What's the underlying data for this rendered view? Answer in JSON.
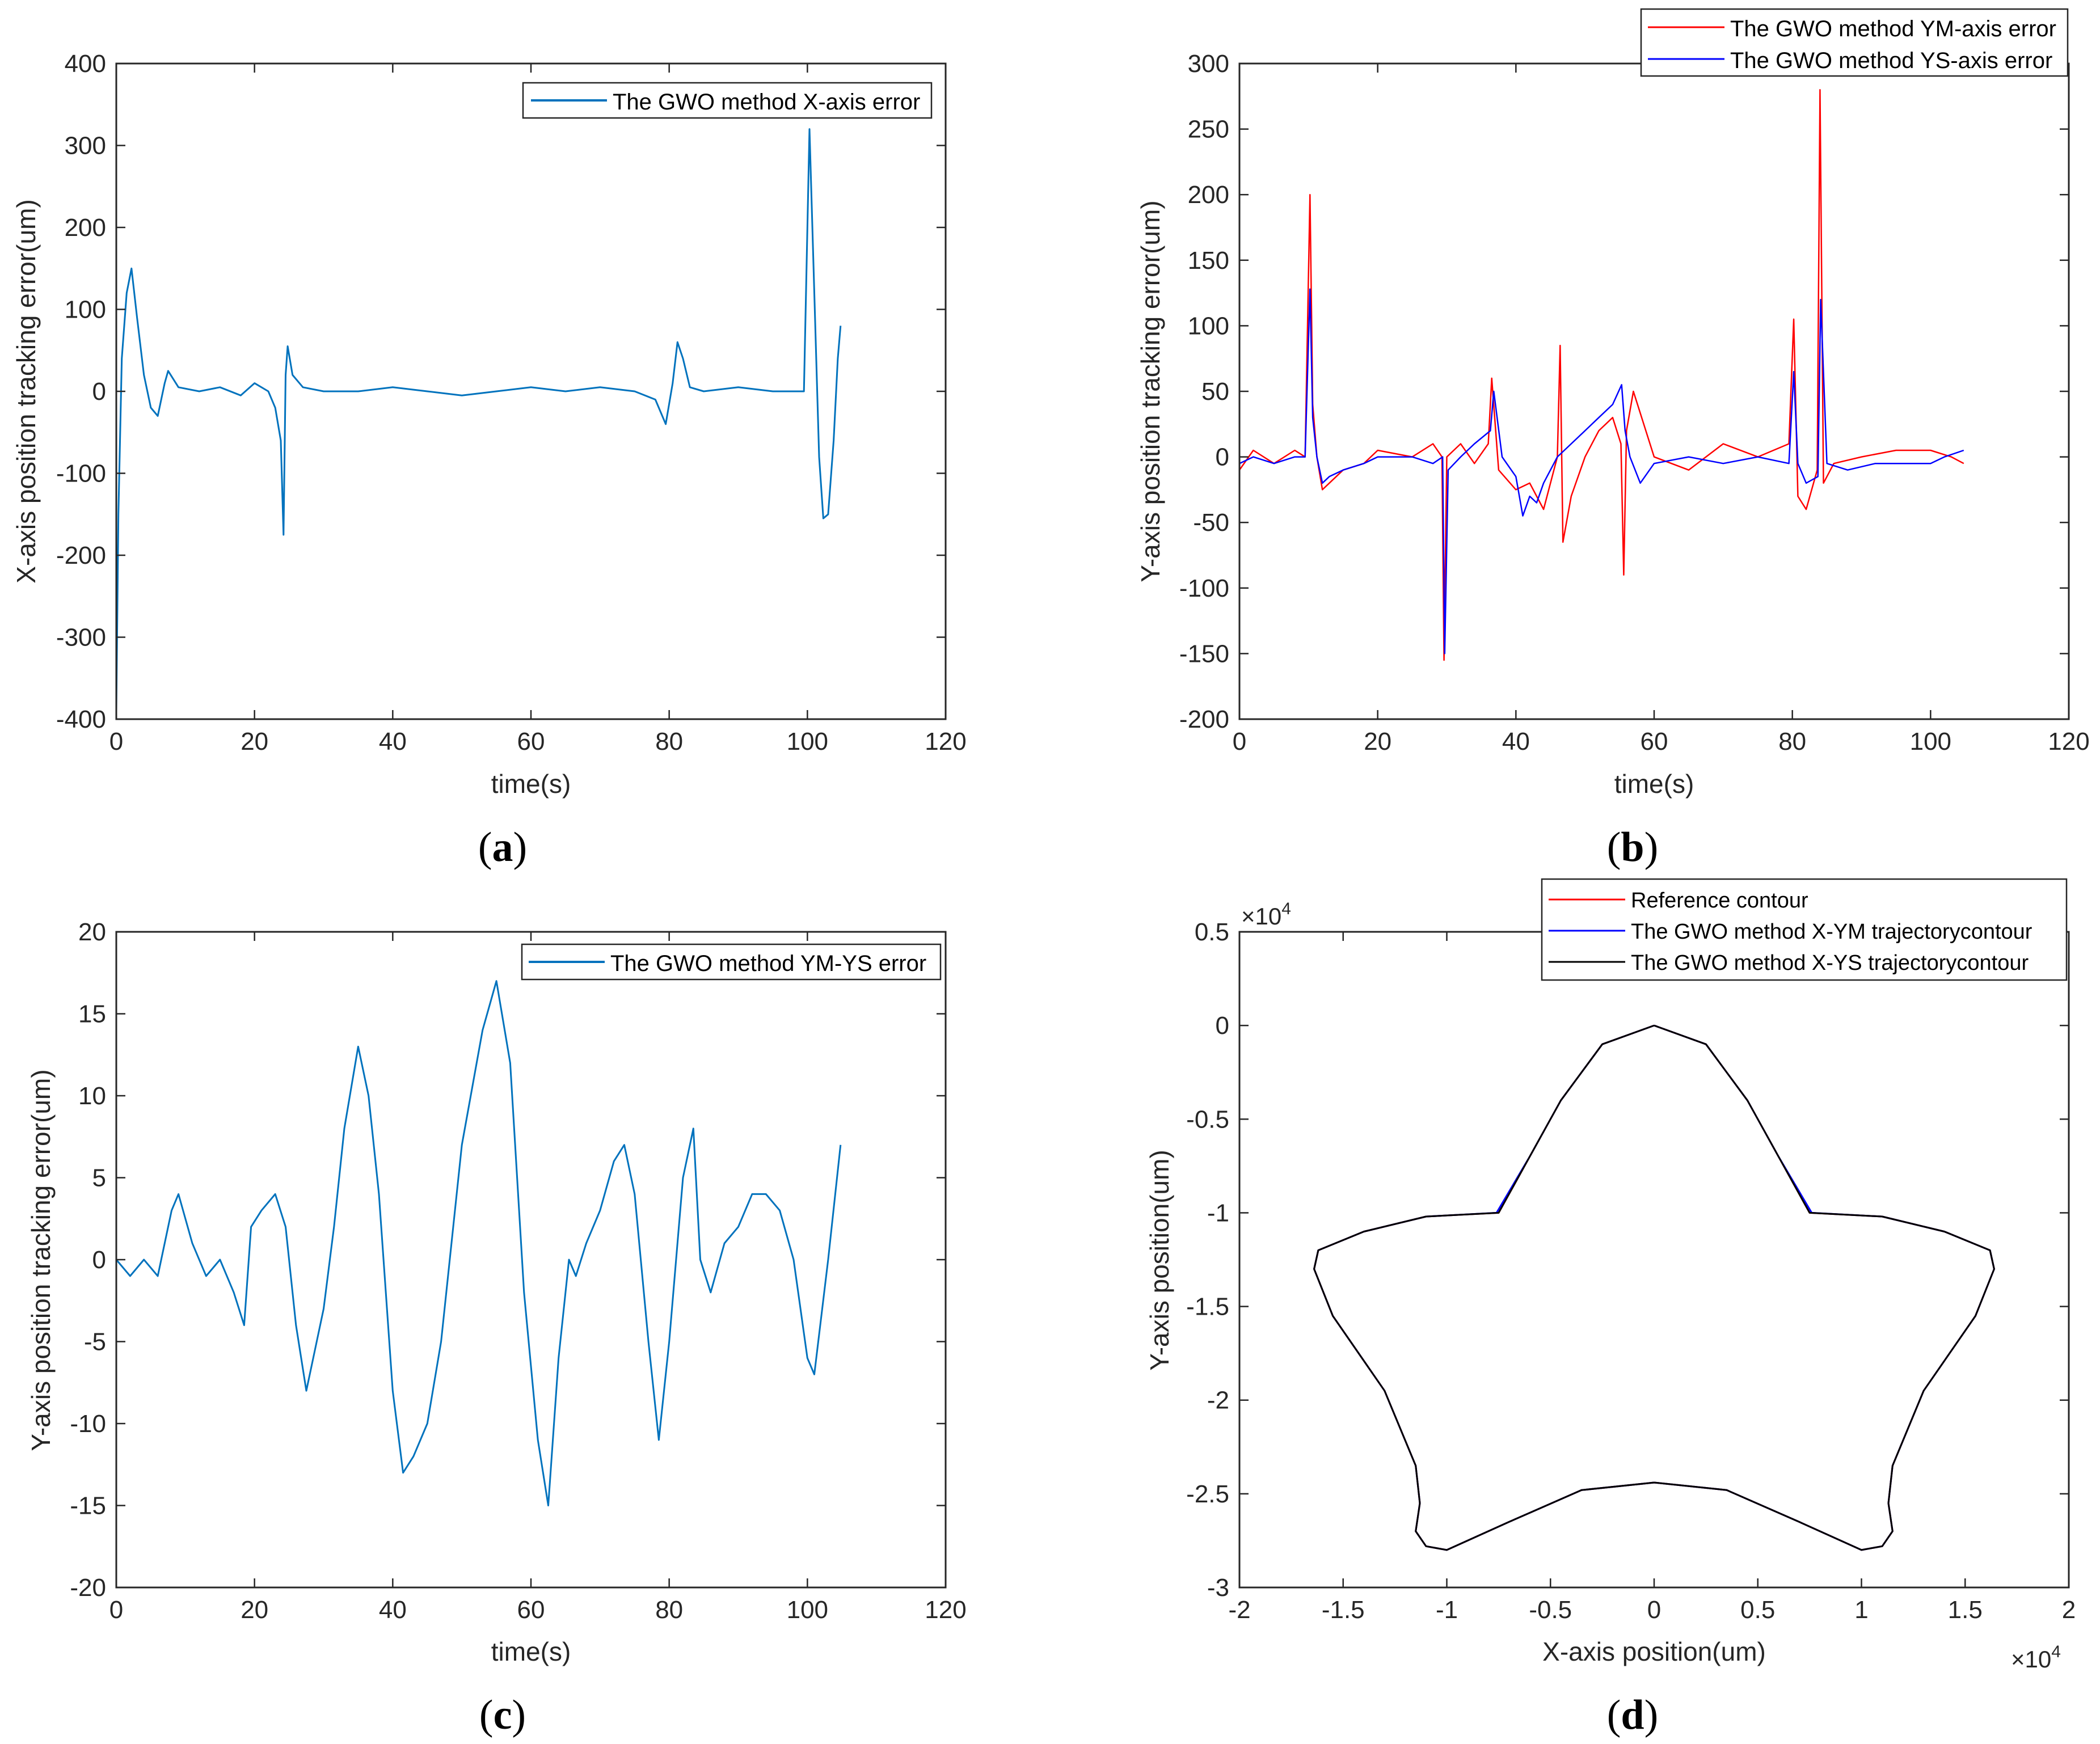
{
  "figure": {
    "panels": [
      "a",
      "b",
      "c",
      "d"
    ],
    "captions": {
      "a": [
        "(",
        "a",
        ")"
      ],
      "b": [
        "(",
        "b",
        ")"
      ],
      "c": [
        "(",
        "c",
        ")"
      ],
      "d": [
        "(",
        "d",
        ")"
      ]
    }
  },
  "chart_data": [
    {
      "id": "a",
      "type": "line",
      "title": "",
      "xlabel": "time(s)",
      "ylabel": "X-axis position tracking error(um)",
      "xlim": [
        0,
        120
      ],
      "ylim": [
        -400,
        400
      ],
      "xticks": [
        0,
        20,
        40,
        60,
        80,
        100,
        120
      ],
      "xtick_labels": [
        "0",
        "20",
        "40",
        "60",
        "80",
        "100",
        "120"
      ],
      "yticks": [
        -400,
        -300,
        -200,
        -100,
        0,
        100,
        200,
        300,
        400
      ],
      "ytick_labels": [
        "-400",
        "-300",
        "-200",
        "-100",
        "0",
        "100",
        "200",
        "300",
        "400"
      ],
      "grid": false,
      "legend_position": "top-right",
      "series": [
        {
          "name": "The GWO method X-axis error",
          "color": "#0072BD",
          "x": [
            0,
            0.3,
            0.8,
            1.5,
            2.2,
            3,
            4,
            5,
            6,
            7,
            7.5,
            9,
            12,
            15,
            18,
            20,
            22,
            23,
            23.8,
            24.2,
            24.5,
            24.8,
            25.5,
            27,
            30,
            35,
            40,
            45,
            50,
            55,
            60,
            65,
            70,
            75,
            78,
            79.5,
            80.5,
            81.2,
            82,
            83,
            85,
            90,
            95,
            99.5,
            100.3,
            101,
            101.7,
            102.3,
            103,
            103.8,
            104.4,
            104.8
          ],
          "y": [
            -390,
            -150,
            40,
            120,
            150,
            90,
            20,
            -20,
            -30,
            10,
            25,
            5,
            0,
            5,
            -5,
            10,
            0,
            -20,
            -60,
            -175,
            20,
            55,
            20,
            5,
            0,
            0,
            5,
            0,
            -5,
            0,
            5,
            0,
            5,
            0,
            -10,
            -40,
            10,
            60,
            40,
            5,
            0,
            5,
            0,
            0,
            320,
            120,
            -80,
            -155,
            -150,
            -60,
            40,
            80
          ]
        }
      ]
    },
    {
      "id": "b",
      "type": "line",
      "title": "",
      "xlabel": "time(s)",
      "ylabel": "Y-axis position tracking error(um)",
      "xlim": [
        0,
        120
      ],
      "ylim": [
        -200,
        300
      ],
      "xticks": [
        0,
        20,
        40,
        60,
        80,
        100,
        120
      ],
      "xtick_labels": [
        "0",
        "20",
        "40",
        "60",
        "80",
        "100",
        "120"
      ],
      "yticks": [
        -200,
        -150,
        -100,
        -50,
        0,
        50,
        100,
        150,
        200,
        250,
        300
      ],
      "ytick_labels": [
        "-200",
        "-150",
        "-100",
        "-50",
        "0",
        "50",
        "100",
        "150",
        "200",
        "250",
        "300"
      ],
      "grid": false,
      "legend_position": "top-right",
      "series": [
        {
          "name": "The GWO method YM-axis error",
          "color": "#FF0000",
          "x": [
            0,
            2,
            5,
            8,
            9.5,
            10.2,
            10.6,
            11.2,
            12,
            13,
            15,
            18,
            20,
            25,
            28,
            29.3,
            29.6,
            30,
            32,
            34,
            36,
            36.5,
            37.5,
            40,
            42,
            44,
            46,
            46.4,
            46.8,
            48,
            50,
            52,
            54,
            55.2,
            55.6,
            56,
            57,
            60,
            65,
            70,
            75,
            79.5,
            80.2,
            80.8,
            82,
            83.6,
            84,
            84.5,
            86,
            90,
            95,
            100,
            103,
            104.8
          ],
          "y": [
            -10,
            5,
            -5,
            5,
            0,
            200,
            40,
            0,
            -25,
            -20,
            -10,
            -5,
            5,
            0,
            10,
            0,
            -155,
            0,
            10,
            -5,
            10,
            60,
            -10,
            -25,
            -20,
            -40,
            0,
            85,
            -65,
            -30,
            0,
            20,
            30,
            10,
            -90,
            20,
            50,
            0,
            -10,
            10,
            0,
            10,
            105,
            -30,
            -40,
            -10,
            280,
            -20,
            -5,
            0,
            5,
            5,
            0,
            -5
          ]
        },
        {
          "name": "The GWO method YS-axis error",
          "color": "#0000FF",
          "x": [
            0,
            2,
            5,
            8,
            9.5,
            10.2,
            10.6,
            11.2,
            12,
            13,
            15,
            18,
            20,
            25,
            28,
            29.4,
            29.7,
            30.2,
            32,
            34,
            36.3,
            36.8,
            38,
            40,
            41,
            42,
            43,
            44,
            46,
            48,
            50,
            52,
            54,
            55.3,
            55.8,
            56.5,
            58,
            60,
            65,
            70,
            75,
            79.5,
            80.2,
            80.8,
            82,
            83.7,
            84.1,
            85,
            88,
            92,
            96,
            100,
            102,
            104.8
          ],
          "y": [
            -5,
            0,
            -5,
            0,
            0,
            128,
            30,
            0,
            -20,
            -15,
            -10,
            -5,
            0,
            0,
            -5,
            0,
            -150,
            -10,
            0,
            10,
            20,
            50,
            0,
            -15,
            -45,
            -30,
            -35,
            -20,
            0,
            10,
            20,
            30,
            40,
            55,
            20,
            0,
            -20,
            -5,
            0,
            -5,
            0,
            -5,
            65,
            -5,
            -20,
            -15,
            120,
            -5,
            -10,
            -5,
            -5,
            -5,
            0,
            5
          ]
        }
      ]
    },
    {
      "id": "c",
      "type": "line",
      "title": "",
      "xlabel": "time(s)",
      "ylabel": "Y-axis position tracking error(um)",
      "xlim": [
        0,
        120
      ],
      "ylim": [
        -20,
        20
      ],
      "xticks": [
        0,
        20,
        40,
        60,
        80,
        100,
        120
      ],
      "xtick_labels": [
        "0",
        "20",
        "40",
        "60",
        "80",
        "100",
        "120"
      ],
      "yticks": [
        -20,
        -15,
        -10,
        -5,
        0,
        5,
        10,
        15,
        20
      ],
      "ytick_labels": [
        "-20",
        "-15",
        "-10",
        "-5",
        "0",
        "5",
        "10",
        "15",
        "20"
      ],
      "grid": false,
      "legend_position": "top-right",
      "series": [
        {
          "name": "The GWO method YM-YS error",
          "color": "#0072BD",
          "x": [
            0,
            2,
            4,
            6,
            8,
            9,
            11,
            13,
            15,
            17,
            18.5,
            19.5,
            21,
            23,
            24.5,
            26,
            27.5,
            29,
            30,
            31.5,
            33,
            35,
            36.5,
            38,
            40,
            41.5,
            43,
            45,
            47,
            50,
            53,
            55,
            57,
            59,
            61,
            62.5,
            64,
            65.5,
            66.5,
            68,
            70,
            72,
            73.5,
            75,
            77,
            78.5,
            80,
            82,
            83.5,
            84.5,
            86,
            88,
            90,
            92,
            94,
            96,
            98,
            100,
            101,
            103,
            104.8
          ],
          "y": [
            0,
            -1,
            0,
            -1,
            3,
            4,
            1,
            -1,
            0,
            -2,
            -4,
            2,
            3,
            4,
            2,
            -4,
            -8,
            -5,
            -3,
            2,
            8,
            13,
            10,
            4,
            -8,
            -13,
            -12,
            -10,
            -5,
            7,
            14,
            17,
            12,
            -2,
            -11,
            -15,
            -6,
            0,
            -1,
            1,
            3,
            6,
            7,
            4,
            -5,
            -11,
            -5,
            5,
            8,
            0,
            -2,
            1,
            2,
            4,
            4,
            3,
            0,
            -6,
            -7,
            0,
            7
          ]
        }
      ]
    },
    {
      "id": "d",
      "type": "line",
      "title": "",
      "xlabel": "X-axis position(um)",
      "ylabel": "Y-axis position(um)",
      "xlim": [
        -2,
        2
      ],
      "ylim": [
        -3,
        0.5
      ],
      "x_exponent": "×10",
      "x_exponent_power": "4",
      "y_exponent": "×10",
      "y_exponent_power": "4",
      "xticks": [
        -2,
        -1.5,
        -1,
        -0.5,
        0,
        0.5,
        1,
        1.5,
        2
      ],
      "xtick_labels": [
        "-2",
        "-1.5",
        "-1",
        "-0.5",
        "0",
        "0.5",
        "1",
        "1.5",
        "2"
      ],
      "yticks": [
        -3,
        -2.5,
        -2,
        -1.5,
        -1,
        -0.5,
        0,
        0.5
      ],
      "ytick_labels": [
        "-3",
        "-2.5",
        "-2",
        "-1.5",
        "-1",
        "-0.5",
        "0",
        "0.5"
      ],
      "grid": false,
      "legend_position": "top-right",
      "series": [
        {
          "name": "Reference contour",
          "color": "#FF0000",
          "x": [
            0,
            0.25,
            0.45,
            0.6,
            0.75,
            1.1,
            1.4,
            1.62,
            1.64,
            1.55,
            1.3,
            1.15,
            1.13,
            1.15,
            1.1,
            1.0,
            0.7,
            0.35,
            0,
            -0.35,
            -0.7,
            -1.0,
            -1.1,
            -1.15,
            -1.13,
            -1.15,
            -1.3,
            -1.55,
            -1.64,
            -1.62,
            -1.4,
            -1.1,
            -0.75,
            -0.6,
            -0.45,
            -0.25,
            0
          ],
          "y": [
            0,
            -0.1,
            -0.4,
            -0.7,
            -1.0,
            -1.02,
            -1.1,
            -1.2,
            -1.3,
            -1.55,
            -1.95,
            -2.35,
            -2.55,
            -2.7,
            -2.78,
            -2.8,
            -2.65,
            -2.48,
            -2.44,
            -2.48,
            -2.65,
            -2.8,
            -2.78,
            -2.7,
            -2.55,
            -2.35,
            -1.95,
            -1.55,
            -1.3,
            -1.2,
            -1.1,
            -1.02,
            -1.0,
            -0.7,
            -0.4,
            -0.1,
            0
          ]
        },
        {
          "name": "The GWO method X-YM trajectorycontour",
          "color": "#0000FF",
          "x": [
            0,
            0.25,
            0.45,
            0.6,
            0.76,
            1.1,
            1.4,
            1.62,
            1.64,
            1.55,
            1.3,
            1.15,
            1.13,
            1.15,
            1.1,
            1.0,
            0.7,
            0.35,
            0,
            -0.35,
            -0.7,
            -1.0,
            -1.1,
            -1.15,
            -1.13,
            -1.15,
            -1.3,
            -1.55,
            -1.64,
            -1.62,
            -1.4,
            -1.1,
            -0.76,
            -0.6,
            -0.45,
            -0.25,
            0
          ],
          "y": [
            0,
            -0.1,
            -0.4,
            -0.7,
            -1.0,
            -1.02,
            -1.1,
            -1.2,
            -1.3,
            -1.55,
            -1.95,
            -2.35,
            -2.55,
            -2.7,
            -2.78,
            -2.8,
            -2.65,
            -2.48,
            -2.44,
            -2.48,
            -2.65,
            -2.8,
            -2.78,
            -2.7,
            -2.55,
            -2.35,
            -1.95,
            -1.55,
            -1.3,
            -1.2,
            -1.1,
            -1.02,
            -1.0,
            -0.7,
            -0.4,
            -0.1,
            0
          ]
        },
        {
          "name": "The GWO method X-YS trajectorycontour",
          "color": "#000000",
          "x": [
            0,
            0.25,
            0.45,
            0.6,
            0.75,
            1.1,
            1.4,
            1.62,
            1.64,
            1.55,
            1.3,
            1.15,
            1.13,
            1.15,
            1.1,
            1.0,
            0.7,
            0.35,
            0,
            -0.35,
            -0.7,
            -1.0,
            -1.1,
            -1.15,
            -1.13,
            -1.15,
            -1.3,
            -1.55,
            -1.64,
            -1.62,
            -1.4,
            -1.1,
            -0.75,
            -0.6,
            -0.45,
            -0.25,
            0
          ],
          "y": [
            0,
            -0.1,
            -0.4,
            -0.7,
            -1.0,
            -1.02,
            -1.1,
            -1.2,
            -1.3,
            -1.55,
            -1.95,
            -2.35,
            -2.55,
            -2.7,
            -2.78,
            -2.8,
            -2.65,
            -2.48,
            -2.44,
            -2.48,
            -2.65,
            -2.8,
            -2.78,
            -2.7,
            -2.55,
            -2.35,
            -1.95,
            -1.55,
            -1.3,
            -1.2,
            -1.1,
            -1.02,
            -1.0,
            -0.7,
            -0.4,
            -0.1,
            0
          ]
        }
      ]
    }
  ]
}
